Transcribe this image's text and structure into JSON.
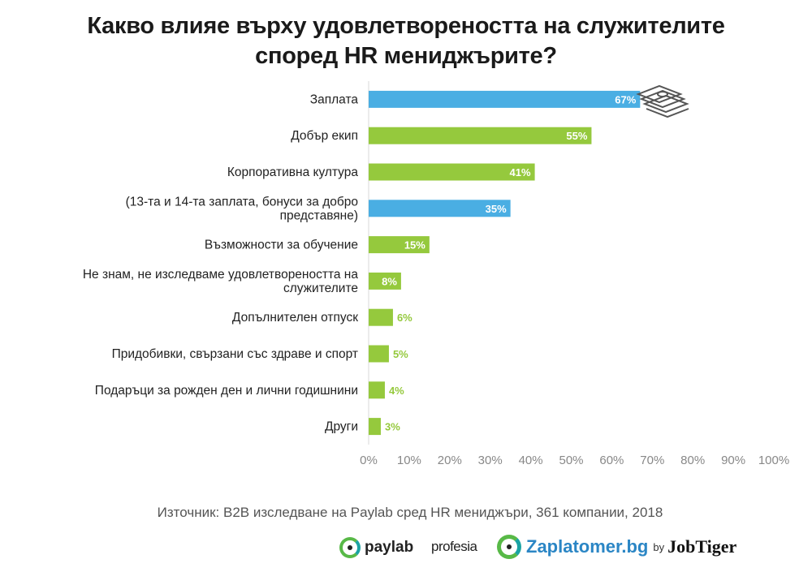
{
  "title": "Какво влияе върху удовлетвореността на служителите според HR мениджърите?",
  "source": "Източник: B2B изследване на Paylab сред HR мениджъри, 361 компании, 2018",
  "logos": {
    "paylab": "paylab",
    "profesia": "profesia",
    "zaplatomer": "Zaplatomer.bg",
    "by": "by",
    "jobtiger": "JobTiger"
  },
  "icons": {
    "money": "money-stack-icon"
  },
  "colors": {
    "highlight": "#4aaee3",
    "default": "#95c93d",
    "axis_text": "#888888",
    "grid": "#dddddd"
  },
  "chart_data": {
    "type": "bar",
    "orientation": "horizontal",
    "categories": [
      "Заплата",
      "Добър екип",
      "Корпоративна култура",
      "(13-та и 14-та заплата, бонуси за добро представяне)",
      "Възможности за обучение",
      "Не знам, не изследваме удовлетвореността на служителите",
      "Допълнителен отпуск",
      "Придобивки, свързани със здраве и спорт",
      "Подаръци за рожден ден и лични годишнини",
      "Други"
    ],
    "values": [
      67,
      55,
      41,
      35,
      15,
      8,
      6,
      5,
      4,
      3
    ],
    "value_labels": [
      "67%",
      "55%",
      "41%",
      "35%",
      "15%",
      "8%",
      "6%",
      "5%",
      "4%",
      "3%"
    ],
    "highlighted": [
      true,
      false,
      false,
      true,
      false,
      false,
      false,
      false,
      false,
      false
    ],
    "xlim": [
      0,
      100
    ],
    "xticks": [
      "0%",
      "10%",
      "20%",
      "30%",
      "40%",
      "50%",
      "60%",
      "70%",
      "80%",
      "90%",
      "100%"
    ],
    "grid": false,
    "legend": "none"
  }
}
